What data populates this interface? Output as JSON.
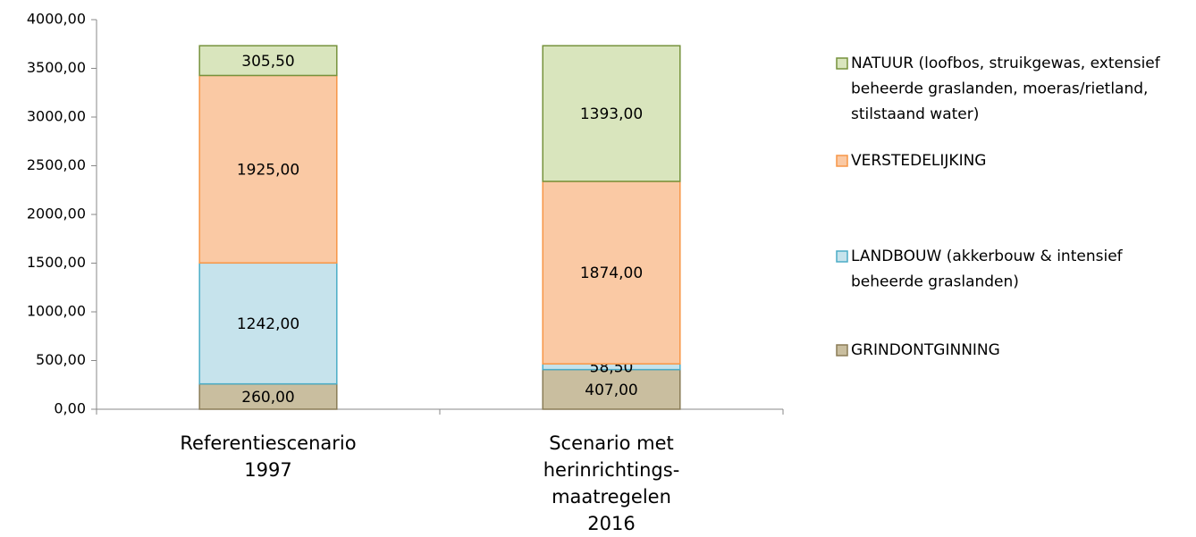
{
  "chart_data": {
    "type": "stacked-bar",
    "categories": [
      "Referentiescenario\n1997",
      "Scenario met\nherinrichtings-\nmaatregelen\n2016"
    ],
    "series": [
      {
        "name": "GRINDONTGINNING",
        "color": "#c9be9f",
        "edge": "#8a7c57",
        "values": [
          260,
          407
        ],
        "value_labels": [
          "260,00",
          "407,00"
        ]
      },
      {
        "name": "LANDBOUW (akkerbouw & intensief\nbeheerde graslanden)",
        "color": "#c6e3ec",
        "edge": "#4bacc6",
        "values": [
          1242,
          58.5
        ],
        "value_labels": [
          "1242,00",
          "58,50"
        ]
      },
      {
        "name": "VERSTEDELIJKING",
        "color": "#fac9a4",
        "edge": "#f79646",
        "values": [
          1925,
          1874
        ],
        "value_labels": [
          "1925,00",
          "1874,00"
        ]
      },
      {
        "name": "NATUUR (loofbos, struikgewas, extensief\nbeheerde graslanden, moeras/rietland,\nstilstaand water)",
        "color": "#d9e5bd",
        "edge": "#76923c",
        "values": [
          305.5,
          1393
        ],
        "value_labels": [
          "305,50",
          "1393,00"
        ]
      }
    ],
    "ylim": [
      0,
      4000
    ],
    "yticks": [
      {
        "value": 0,
        "label": "0,00"
      },
      {
        "value": 500,
        "label": "500,00"
      },
      {
        "value": 1000,
        "label": "1000,00"
      },
      {
        "value": 1500,
        "label": "1500,00"
      },
      {
        "value": 2000,
        "label": "2000,00"
      },
      {
        "value": 2500,
        "label": "2500,00"
      },
      {
        "value": 3000,
        "label": "3000,00"
      },
      {
        "value": 3500,
        "label": "3500,00"
      },
      {
        "value": 4000,
        "label": "4000,00"
      }
    ],
    "grid": false
  }
}
